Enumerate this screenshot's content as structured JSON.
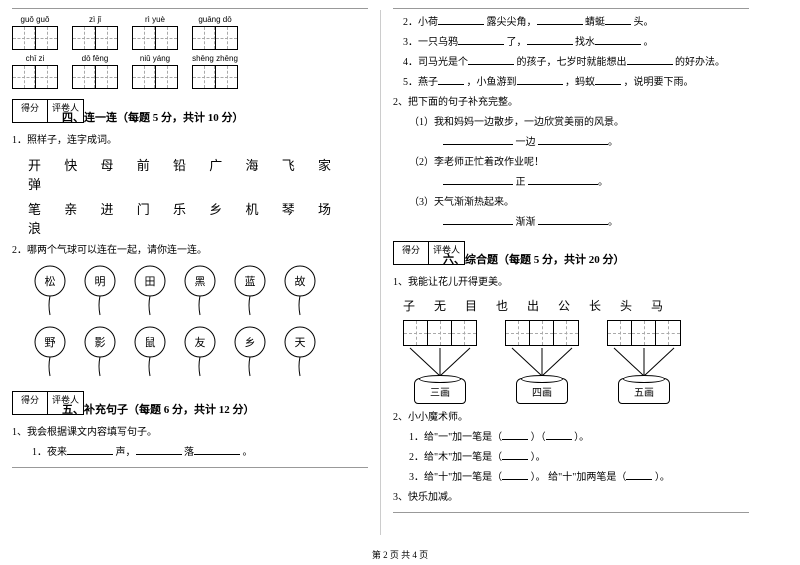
{
  "footer": "第 2 页  共 4 页",
  "score_labels": {
    "score": "得分",
    "grader": "评卷人"
  },
  "left": {
    "pinyin_row1": [
      {
        "py": "guǒ  guǒ"
      },
      {
        "py": "zì    jǐ"
      },
      {
        "py": "rì   yuè"
      },
      {
        "py": "guāng  dō"
      }
    ],
    "pinyin_row2": [
      {
        "py": "chī  zi"
      },
      {
        "py": "dō  fēng"
      },
      {
        "py": "niǔ  yáng"
      },
      {
        "py": "shēng zhēng"
      }
    ],
    "section4_title": "四、连一连（每题 5 分，共计 10 分）",
    "q4_1": "1．照样子，连字成词。",
    "q4_1_row1": "开  快  母  前  铅      广  海  飞  家  弹",
    "q4_1_row2": "笔  亲  进  门  乐      乡  机  琴  场  浪",
    "q4_2": "2．哪两个气球可以连在一起，请你连一连。",
    "balloons_top": [
      "松",
      "明",
      "田",
      "黑",
      "蓝",
      "故"
    ],
    "balloons_bot": [
      "野",
      "影",
      "鼠",
      "友",
      "乡",
      "天"
    ],
    "section5_title": "五、补充句子（每题 6 分，共计 12 分）",
    "q5_1": "1、我会根据课文内容填写句子。",
    "q5_1_1_pre": "1．夜来",
    "q5_1_1_mid": "声，",
    "q5_1_1_mid2": "落",
    "q5_1_1_end": "。"
  },
  "right": {
    "q5_2": "2．小荷",
    "q5_2_a": "露尖尖角，",
    "q5_2_b": "蜻蜓",
    "q5_2_c": "头。",
    "q5_3": "3．一只乌鸦",
    "q5_3_a": "了，",
    "q5_3_b": "找水",
    "q5_3_c": "。",
    "q5_4": "4．司马光是个",
    "q5_4_a": "的孩子，七岁时就能想出",
    "q5_4_b": "的好办法。",
    "q5_5": "5．燕子",
    "q5_5_a": "，小鱼游到",
    "q5_5_b": "，蚂蚁",
    "q5_5_c": "，说明要下雨。",
    "q5_part2": "2、把下面的句子补充完整。",
    "q5_p2_1": "（1）我和妈妈一边散步，一边欣赏美丽的风景。",
    "q5_p2_1_line": "一边",
    "q5_p2_2": "（2）李老师正忙着改作业呢！",
    "q5_p2_2_line": "正",
    "q5_p2_3": "（3）天气渐渐热起来。",
    "q5_p2_3_line": "渐渐",
    "section6_title": "六、综合题（每题 5 分，共计 20 分）",
    "q6_1": "1、我能让花儿开得更美。",
    "q6_chars": "子   无   目      也   出   公      长   头   马",
    "pots": [
      "三画",
      "四画",
      "五画"
    ],
    "q6_2": "2、小小魔术师。",
    "q6_2_1a": "1．给\"一\"加一笔是（",
    "q6_2_1b": "）（",
    "q6_2_1c": "）。",
    "q6_2_2a": "2．给\"木\"加一笔是（",
    "q6_2_2b": "）。",
    "q6_2_3a": "3．给\"十\"加一笔是（",
    "q6_2_3b": "）。  给\"十\"加两笔是（",
    "q6_2_3c": "）。",
    "q6_3": "3、快乐加减。"
  }
}
